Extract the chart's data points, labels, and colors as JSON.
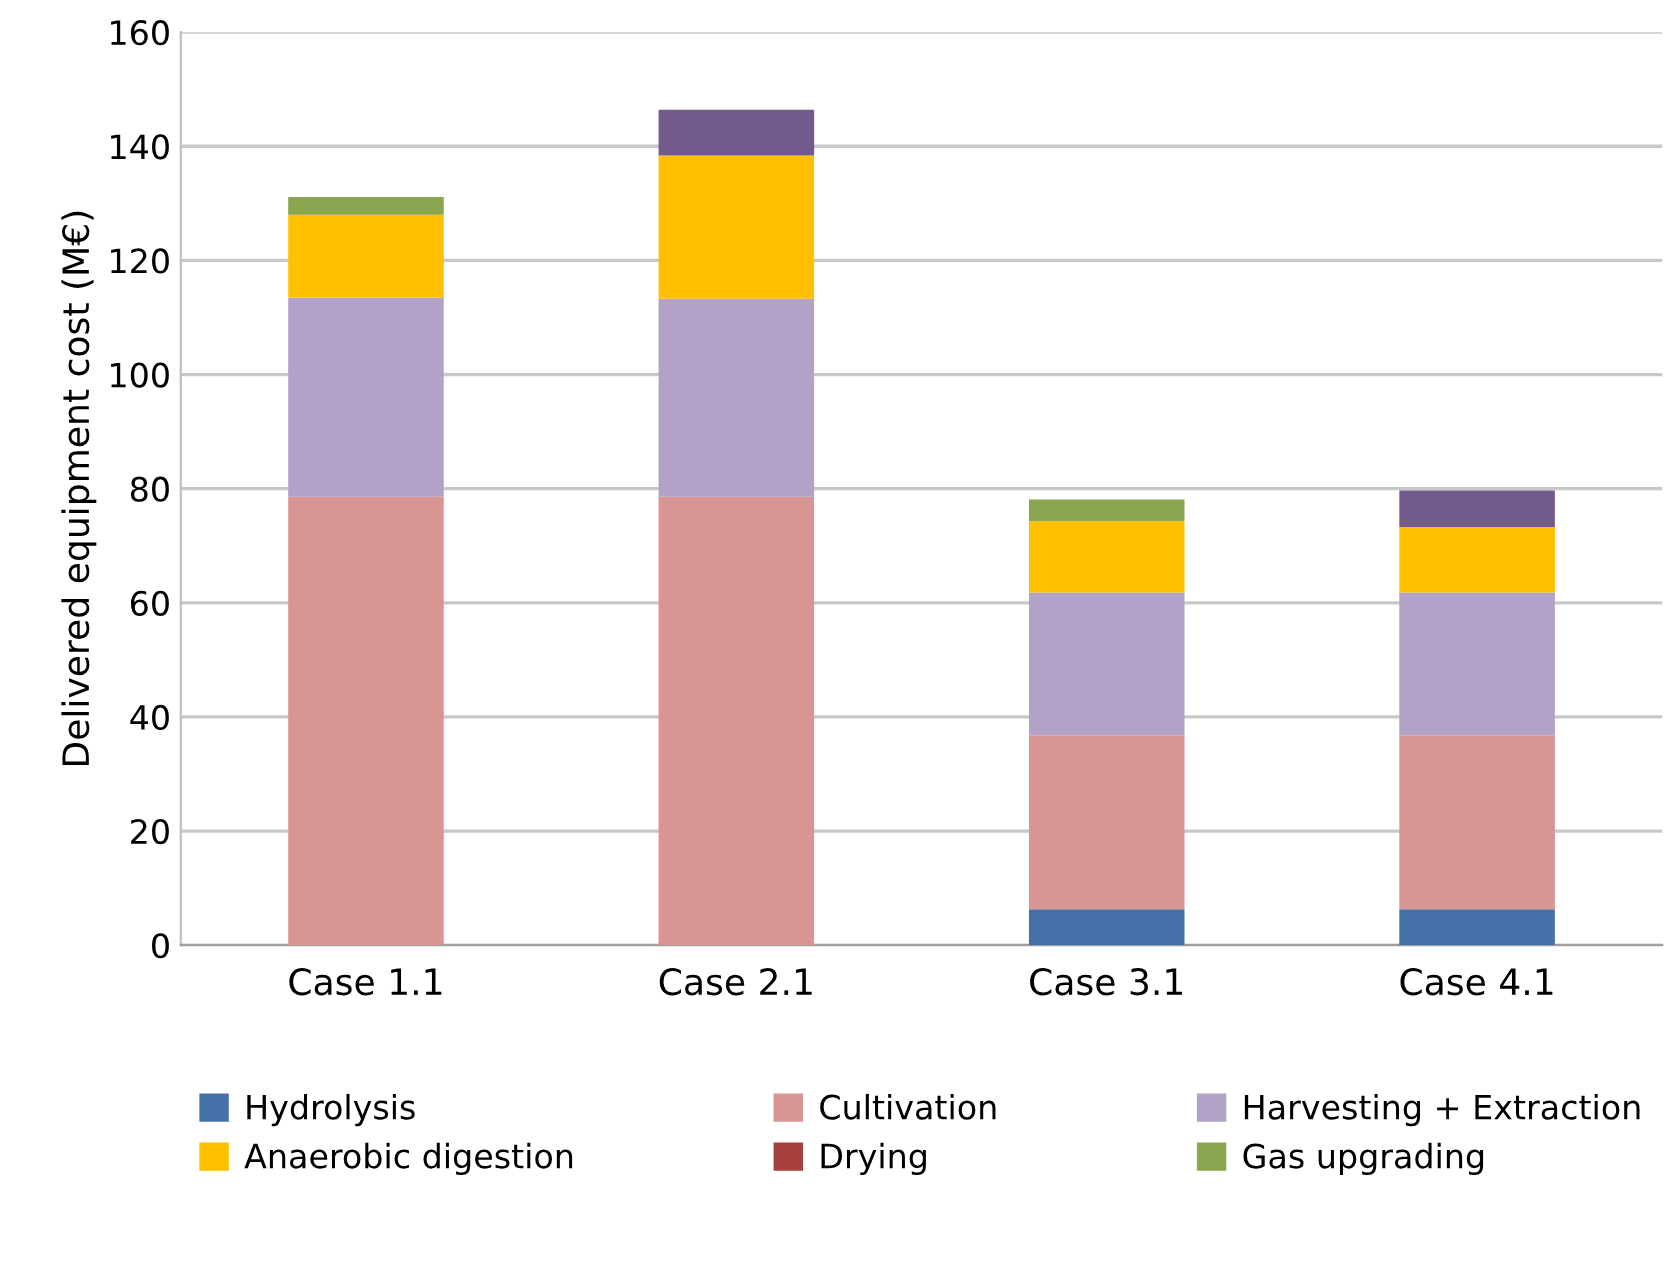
{
  "chart_data": {
    "type": "bar",
    "stacked": true,
    "ylabel": "Delivered equipment cost (M€)",
    "categories": [
      "Case 1.1",
      "Case 2.1",
      "Case 3.1",
      "Case 4.1"
    ],
    "series": [
      {
        "name": "Hydrolysis",
        "color": "#4472a8",
        "values": [
          0,
          0,
          6.3,
          6.3
        ]
      },
      {
        "name": "Cultivation",
        "color": "#d99594",
        "values": [
          78.6,
          78.6,
          30.5,
          30.5
        ]
      },
      {
        "name": "Harvesting + Extraction",
        "color": "#b2a2c7",
        "values": [
          34.9,
          34.7,
          25,
          25
        ]
      },
      {
        "name": "Anaerobic digestion",
        "color": "#ffc000",
        "values": [
          14.5,
          25.1,
          12.5,
          11.5
        ]
      },
      {
        "name": "Drying",
        "color": "#a5403d",
        "values": [
          0,
          0,
          0,
          0
        ]
      },
      {
        "name": "Gas upgrading",
        "color": "#8aa64f",
        "values": [
          3.1,
          0,
          3.8,
          0
        ]
      },
      {
        "color": "#725a8c",
        "values": [
          0,
          8,
          0,
          6.4
        ]
      }
    ],
    "ylim": [
      0,
      160
    ],
    "yticks": [
      0,
      20,
      40,
      60,
      80,
      100,
      120,
      140,
      160
    ],
    "grid": "y",
    "legend": "bottom"
  }
}
